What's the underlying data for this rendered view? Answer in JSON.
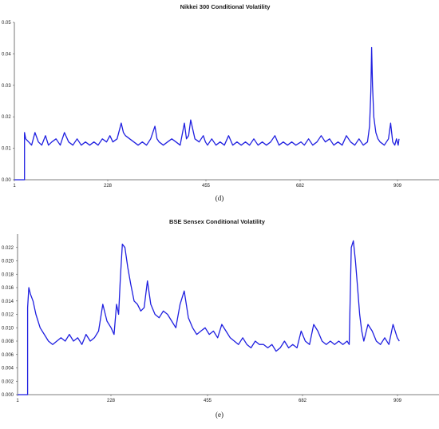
{
  "chart_data": [
    {
      "type": "line",
      "title": "Nikkei 300 Conditional Volatility",
      "panel_label": "(d)",
      "xlabel": "",
      "ylabel": "",
      "xlim": [
        1,
        1010
      ],
      "ylim": [
        0.0,
        0.05
      ],
      "x_ticks": [
        "1",
        "228",
        "455",
        "682",
        "909"
      ],
      "y_ticks": [
        "0.00",
        "0.01",
        "0.02",
        "0.03",
        "0.04",
        "0.05"
      ],
      "grid": false,
      "series_color": "#1f1fe0",
      "series": [
        {
          "x": [
            1,
            25,
            25,
            28,
            35,
            42,
            50,
            58,
            66,
            75,
            82,
            90,
            100,
            110,
            120,
            130,
            140,
            150,
            160,
            170,
            180,
            190,
            200,
            210,
            220,
            228,
            235,
            245,
            255,
            260,
            265,
            275,
            285,
            295,
            305,
            315,
            325,
            335,
            340,
            345,
            355,
            365,
            375,
            385,
            395,
            405,
            410,
            415,
            420,
            430,
            440,
            450,
            455,
            460,
            470,
            480,
            490,
            500,
            510,
            520,
            530,
            540,
            550,
            560,
            570,
            580,
            590,
            600,
            610,
            620,
            630,
            640,
            650,
            660,
            670,
            682,
            690,
            700,
            710,
            720,
            730,
            740,
            750,
            760,
            770,
            780,
            790,
            800,
            810,
            820,
            830,
            840,
            845,
            848,
            850,
            852,
            855,
            860,
            865,
            870,
            880,
            890,
            895,
            900,
            905,
            909,
            913,
            915
          ],
          "y": [
            0.0,
            0.0,
            0.015,
            0.013,
            0.012,
            0.011,
            0.015,
            0.012,
            0.011,
            0.014,
            0.011,
            0.012,
            0.013,
            0.011,
            0.015,
            0.012,
            0.011,
            0.013,
            0.011,
            0.012,
            0.011,
            0.012,
            0.011,
            0.013,
            0.012,
            0.014,
            0.012,
            0.013,
            0.018,
            0.015,
            0.014,
            0.013,
            0.012,
            0.011,
            0.012,
            0.011,
            0.013,
            0.017,
            0.013,
            0.012,
            0.011,
            0.012,
            0.013,
            0.012,
            0.011,
            0.018,
            0.013,
            0.014,
            0.019,
            0.013,
            0.012,
            0.014,
            0.012,
            0.011,
            0.013,
            0.011,
            0.012,
            0.011,
            0.014,
            0.011,
            0.012,
            0.011,
            0.012,
            0.011,
            0.013,
            0.011,
            0.012,
            0.011,
            0.012,
            0.014,
            0.011,
            0.012,
            0.011,
            0.012,
            0.011,
            0.012,
            0.011,
            0.013,
            0.011,
            0.012,
            0.014,
            0.012,
            0.013,
            0.011,
            0.012,
            0.011,
            0.014,
            0.012,
            0.011,
            0.013,
            0.011,
            0.012,
            0.017,
            0.028,
            0.042,
            0.03,
            0.02,
            0.015,
            0.013,
            0.012,
            0.011,
            0.013,
            0.018,
            0.012,
            0.011,
            0.013,
            0.011,
            0.013
          ]
        }
      ]
    },
    {
      "type": "line",
      "title": "BSE Sensex Conditional Volatility",
      "panel_label": "(e)",
      "xlabel": "",
      "ylabel": "",
      "xlim": [
        1,
        1010
      ],
      "ylim": [
        0.0,
        0.024
      ],
      "x_ticks": [
        "1",
        "228",
        "455",
        "682",
        "909"
      ],
      "y_ticks": [
        "0.000",
        "0.002",
        "0.004",
        "0.006",
        "0.008",
        "0.010",
        "0.012",
        "0.014",
        "0.016",
        "0.018",
        "0.020",
        "0.022"
      ],
      "grid": false,
      "series_color": "#1f1fe0",
      "series": [
        {
          "x": [
            1,
            25,
            25,
            28,
            32,
            38,
            45,
            55,
            65,
            75,
            85,
            95,
            105,
            115,
            125,
            135,
            145,
            155,
            165,
            175,
            185,
            195,
            205,
            215,
            225,
            232,
            238,
            243,
            247,
            252,
            258,
            265,
            272,
            280,
            288,
            296,
            304,
            312,
            320,
            330,
            340,
            350,
            360,
            370,
            380,
            390,
            400,
            410,
            420,
            430,
            440,
            450,
            460,
            470,
            480,
            490,
            500,
            510,
            520,
            530,
            540,
            550,
            560,
            570,
            580,
            590,
            600,
            610,
            620,
            630,
            640,
            650,
            660,
            670,
            680,
            690,
            700,
            710,
            720,
            730,
            740,
            750,
            760,
            770,
            780,
            790,
            795,
            800,
            805,
            810,
            815,
            820,
            825,
            830,
            840,
            850,
            860,
            870,
            880,
            890,
            900,
            910,
            915
          ],
          "y": [
            0.0,
            0.0,
            0.013,
            0.016,
            0.015,
            0.014,
            0.012,
            0.01,
            0.009,
            0.008,
            0.0075,
            0.008,
            0.0085,
            0.008,
            0.009,
            0.008,
            0.0085,
            0.0075,
            0.009,
            0.008,
            0.0085,
            0.0095,
            0.0135,
            0.011,
            0.01,
            0.009,
            0.0135,
            0.012,
            0.0172,
            0.0225,
            0.022,
            0.019,
            0.0165,
            0.014,
            0.0135,
            0.0125,
            0.013,
            0.017,
            0.0135,
            0.012,
            0.0115,
            0.0125,
            0.012,
            0.011,
            0.01,
            0.0135,
            0.0155,
            0.0115,
            0.01,
            0.009,
            0.0095,
            0.01,
            0.009,
            0.0095,
            0.0085,
            0.0105,
            0.0095,
            0.0085,
            0.008,
            0.0075,
            0.0085,
            0.0075,
            0.007,
            0.008,
            0.0075,
            0.0075,
            0.007,
            0.0075,
            0.0065,
            0.007,
            0.008,
            0.007,
            0.0075,
            0.007,
            0.0095,
            0.008,
            0.0075,
            0.0105,
            0.0095,
            0.008,
            0.0075,
            0.008,
            0.0075,
            0.008,
            0.0075,
            0.008,
            0.0075,
            0.022,
            0.023,
            0.02,
            0.016,
            0.012,
            0.0095,
            0.008,
            0.0105,
            0.0095,
            0.008,
            0.0075,
            0.0085,
            0.0075,
            0.0105,
            0.0085,
            0.008
          ]
        }
      ]
    }
  ]
}
